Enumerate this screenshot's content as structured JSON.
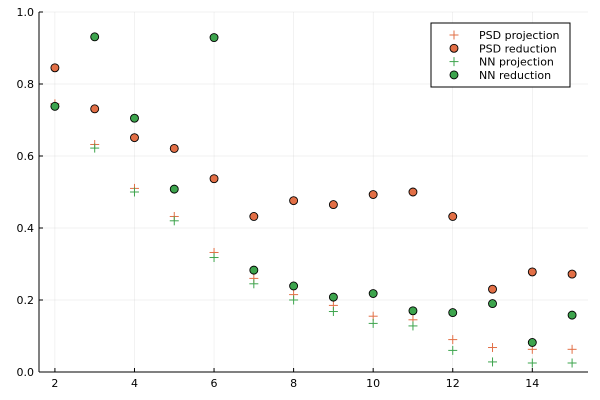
{
  "chart_data": {
    "type": "scatter",
    "title": "",
    "xlabel": "",
    "ylabel": "",
    "xlim": [
      1.6,
      15.4
    ],
    "ylim": [
      0,
      1
    ],
    "x_ticks": [
      2,
      4,
      6,
      8,
      10,
      12,
      14
    ],
    "y_ticks": [
      0.0,
      0.2,
      0.4,
      0.6,
      0.8,
      1.0
    ],
    "x_tick_labels": [
      "2",
      "4",
      "6",
      "8",
      "10",
      "12",
      "14"
    ],
    "y_tick_labels": [
      "0.0",
      "0.2",
      "0.4",
      "0.6",
      "0.8",
      "1.0"
    ],
    "grid": true,
    "legend_position": "top-right",
    "colors": {
      "psd": "#e26f46",
      "nn": "#3da44d"
    },
    "series": [
      {
        "name": "PSD projection",
        "marker": "plus",
        "color": "#e26f46",
        "x": [
          2,
          3,
          4,
          5,
          6,
          7,
          8,
          9,
          10,
          11,
          12,
          13,
          14,
          15
        ],
        "y": [
          0.745,
          0.632,
          0.51,
          0.432,
          0.332,
          0.26,
          0.215,
          0.185,
          0.155,
          0.145,
          0.09,
          0.068,
          0.063,
          0.063
        ]
      },
      {
        "name": "PSD reduction",
        "marker": "circle",
        "color": "#e26f46",
        "x": [
          2,
          3,
          4,
          5,
          6,
          7,
          8,
          9,
          10,
          11,
          12,
          13,
          14,
          15
        ],
        "y": [
          0.845,
          0.731,
          0.651,
          0.621,
          0.537,
          0.432,
          0.476,
          0.465,
          0.493,
          0.5,
          0.432,
          0.23,
          0.278,
          0.272
        ]
      },
      {
        "name": "NN projection",
        "marker": "plus",
        "color": "#3da44d",
        "x": [
          2,
          3,
          4,
          5,
          6,
          7,
          8,
          9,
          10,
          11,
          12,
          13,
          14,
          15
        ],
        "y": [
          0.738,
          0.622,
          0.5,
          0.42,
          0.318,
          0.245,
          0.2,
          0.168,
          0.135,
          0.128,
          0.06,
          0.028,
          0.025,
          0.025
        ]
      },
      {
        "name": "NN reduction",
        "marker": "circle",
        "color": "#3da44d",
        "x": [
          2,
          3,
          4,
          5,
          6,
          7,
          8,
          9,
          10,
          11,
          12,
          13,
          14,
          15
        ],
        "y": [
          0.738,
          0.931,
          0.705,
          0.508,
          0.929,
          0.283,
          0.239,
          0.208,
          0.218,
          0.17,
          0.165,
          0.19,
          0.082,
          0.158
        ]
      }
    ]
  }
}
